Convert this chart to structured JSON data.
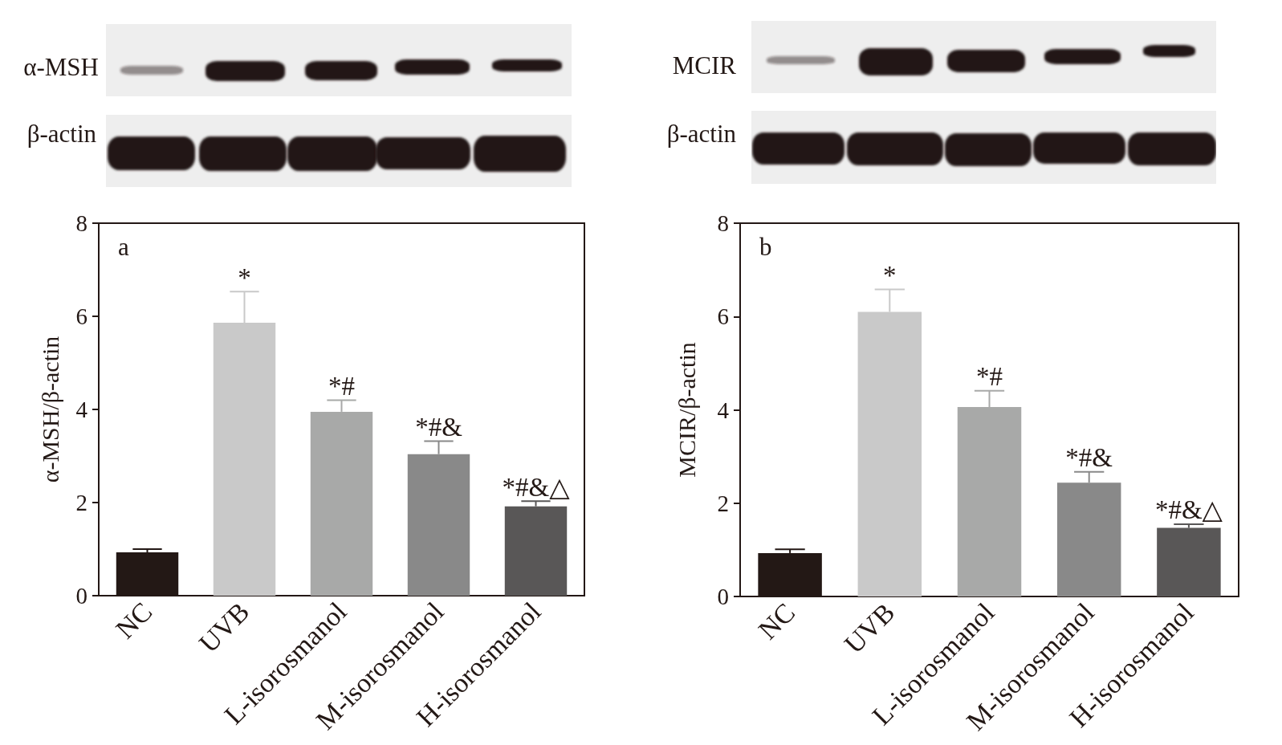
{
  "chart_data": [
    {
      "type": "bar",
      "categories": [
        "NC",
        "UVB",
        "L-isorosmanol",
        "M-isorosmanol",
        "H-isorosmanol"
      ],
      "values": [
        0.93,
        5.86,
        3.95,
        3.04,
        1.92
      ],
      "colors": [
        "#231815",
        "#c9c9c9",
        "#a8a9a8",
        "#898989",
        "#595757"
      ],
      "errors": [
        [
          0.93,
          1.0
        ],
        [
          5.86,
          6.53
        ],
        [
          3.95,
          4.2
        ],
        [
          3.04,
          3.32
        ],
        [
          1.92,
          2.03
        ]
      ],
      "ylabel": "α-MSH/β-actin",
      "ylim": [
        0,
        8
      ],
      "yticks": [
        0,
        2,
        4,
        6,
        8
      ],
      "grid": false,
      "annotations": [
        "a",
        "α-MSH",
        "β-actin",
        {
          "text": "*",
          "x": "UVB",
          "y": 6.53
        },
        {
          "text": "*#",
          "x": "L-isorosmanol",
          "y": 4.2
        },
        {
          "text": "*#&",
          "x": "M-isorosmanol",
          "y": 3.32
        },
        {
          "text": "*#&△",
          "x": "H-isorosmanol",
          "y": 2.03
        }
      ]
    },
    {
      "type": "bar",
      "categories": [
        "NC",
        "UVB",
        "L-isorosmanol",
        "M-isorosmanol",
        "H-isorosmanol"
      ],
      "values": [
        0.93,
        6.1,
        4.06,
        2.44,
        1.47
      ],
      "colors": [
        "#231815",
        "#c9c9c9",
        "#a8a9a8",
        "#898989",
        "#595757"
      ],
      "errors": [
        [
          0.93,
          1.01
        ],
        [
          6.1,
          6.58
        ],
        [
          4.06,
          4.41
        ],
        [
          2.44,
          2.67
        ],
        [
          1.47,
          1.55
        ]
      ],
      "ylabel": "MCIR/β-actin",
      "ylim": [
        0,
        8
      ],
      "yticks": [
        0,
        2,
        4,
        6,
        8
      ],
      "grid": false,
      "annotations": [
        "b",
        "MCIR",
        "β-actin",
        {
          "text": "*",
          "x": "UVB",
          "y": 6.58
        },
        {
          "text": "*#",
          "x": "L-isorosmanol",
          "y": 4.41
        },
        {
          "text": "*#&",
          "x": "M-isorosmanol",
          "y": 2.67
        },
        {
          "text": "*#&△",
          "x": "H-isorosmanol",
          "y": 1.55
        }
      ]
    }
  ]
}
